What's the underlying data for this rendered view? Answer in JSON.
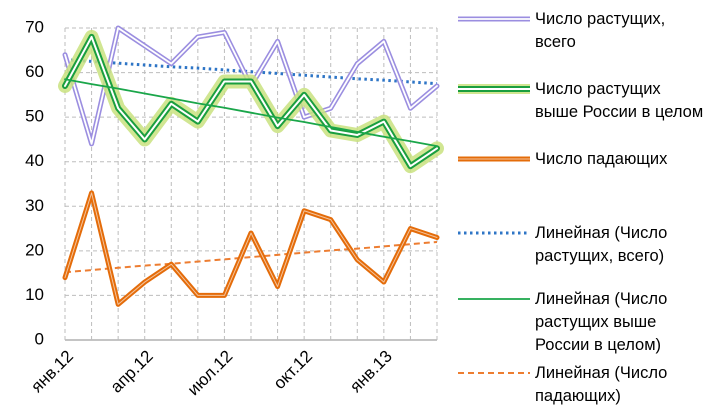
{
  "chart_data": {
    "type": "line",
    "categories": [
      "янв.12",
      null,
      null,
      "апр.12",
      null,
      null,
      "июл.12",
      null,
      null,
      "окт.12",
      null,
      null,
      "янв.13",
      null,
      null
    ],
    "ylim": [
      0,
      70
    ],
    "yticks": [
      0,
      10,
      20,
      30,
      40,
      50,
      60,
      70
    ],
    "grid": true,
    "legend": "right",
    "series": [
      {
        "name": "Число растущих, всего",
        "color": "#9b8ee0",
        "style": "double",
        "values": [
          64,
          44,
          70,
          66,
          62,
          68,
          69,
          57,
          67,
          50,
          52,
          62,
          67,
          52,
          57
        ]
      },
      {
        "name": "Число растущих выше России в целом",
        "color": "#1a9e3f",
        "style": "glow",
        "values": [
          57,
          68,
          52,
          45,
          53,
          49,
          58,
          58,
          48,
          55,
          47,
          46,
          49,
          39,
          43
        ]
      },
      {
        "name": "Число падающих",
        "color": "#e46c0a",
        "style": "thick",
        "values": [
          14,
          33,
          8,
          13,
          17,
          10,
          10,
          24,
          12,
          29,
          27,
          18,
          13,
          25,
          23
        ]
      },
      {
        "name": "Линейная  (Число растущих, всего)",
        "color": "#2e75c6",
        "style": "dotted",
        "values": [
          62.9,
          62.5,
          62.1,
          61.7,
          61.3,
          61.0,
          60.6,
          60.2,
          59.8,
          59.4,
          59.0,
          58.6,
          58.3,
          57.9,
          57.5
        ]
      },
      {
        "name": "Линейная  (Число растущих выше России в целом)",
        "color": "#1aa64a",
        "style": "thin",
        "values": [
          58.5,
          57.4,
          56.4,
          55.3,
          54.2,
          53.1,
          52.1,
          51.0,
          49.9,
          48.9,
          47.8,
          46.7,
          45.6,
          44.6,
          43.5
        ]
      },
      {
        "name": "Линейная  (Число падающих)",
        "color": "#ed7d31",
        "style": "dashed",
        "values": [
          15.2,
          15.7,
          16.2,
          16.7,
          17.1,
          17.6,
          18.1,
          18.6,
          19.1,
          19.6,
          20.1,
          20.5,
          21.0,
          21.5,
          22.0
        ]
      }
    ]
  }
}
